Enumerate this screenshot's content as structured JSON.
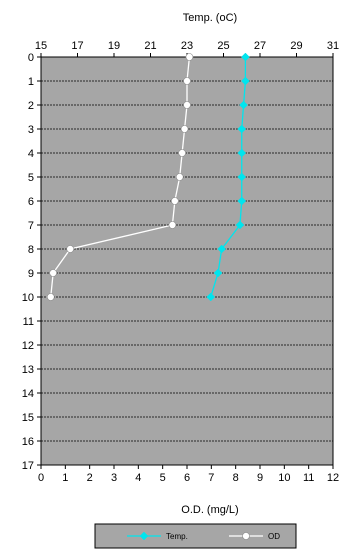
{
  "chart_data": {
    "type": "line",
    "top_axis": {
      "label": "Temp. (oC)",
      "range": [
        15,
        31
      ],
      "ticks": [
        15,
        17,
        19,
        21,
        23,
        25,
        27,
        29,
        31
      ]
    },
    "bottom_axis": {
      "label": "O.D. (mg/L)",
      "range": [
        0,
        12
      ],
      "ticks": [
        0,
        1,
        2,
        3,
        4,
        5,
        6,
        7,
        8,
        9,
        10,
        11,
        12
      ]
    },
    "y_axis": {
      "range": [
        0,
        17
      ],
      "inverted": true,
      "ticks": [
        0,
        1,
        2,
        3,
        4,
        5,
        6,
        7,
        8,
        9,
        10,
        11,
        12,
        13,
        14,
        15,
        16,
        17
      ]
    },
    "series": [
      {
        "name": "Temp.",
        "axis": "top",
        "color": "#00e5ee",
        "marker": "diamond",
        "points": [
          {
            "value": 26.2,
            "depth": 0
          },
          {
            "value": 26.2,
            "depth": 1
          },
          {
            "value": 26.1,
            "depth": 2
          },
          {
            "value": 26.0,
            "depth": 3
          },
          {
            "value": 26.0,
            "depth": 4
          },
          {
            "value": 26.0,
            "depth": 5
          },
          {
            "value": 26.0,
            "depth": 6
          },
          {
            "value": 25.9,
            "depth": 7
          },
          {
            "value": 24.9,
            "depth": 8
          },
          {
            "value": 24.7,
            "depth": 9
          },
          {
            "value": 24.3,
            "depth": 10
          }
        ]
      },
      {
        "name": "OD",
        "axis": "bottom",
        "color": "#ffffff",
        "marker": "circle",
        "points": [
          {
            "value": 6.1,
            "depth": 0
          },
          {
            "value": 6.0,
            "depth": 1
          },
          {
            "value": 6.0,
            "depth": 2
          },
          {
            "value": 5.9,
            "depth": 3
          },
          {
            "value": 5.8,
            "depth": 4
          },
          {
            "value": 5.7,
            "depth": 5
          },
          {
            "value": 5.5,
            "depth": 6
          },
          {
            "value": 5.4,
            "depth": 7
          },
          {
            "value": 1.2,
            "depth": 8
          },
          {
            "value": 0.5,
            "depth": 9
          },
          {
            "value": 0.4,
            "depth": 10
          }
        ]
      }
    ],
    "grid": {
      "horizontal": true,
      "vertical": false
    },
    "legend": "bottom-center",
    "colors": {
      "plot_background": "#a6a6a6",
      "legend_background": "#a6a6a6",
      "grid": "#000000"
    }
  }
}
